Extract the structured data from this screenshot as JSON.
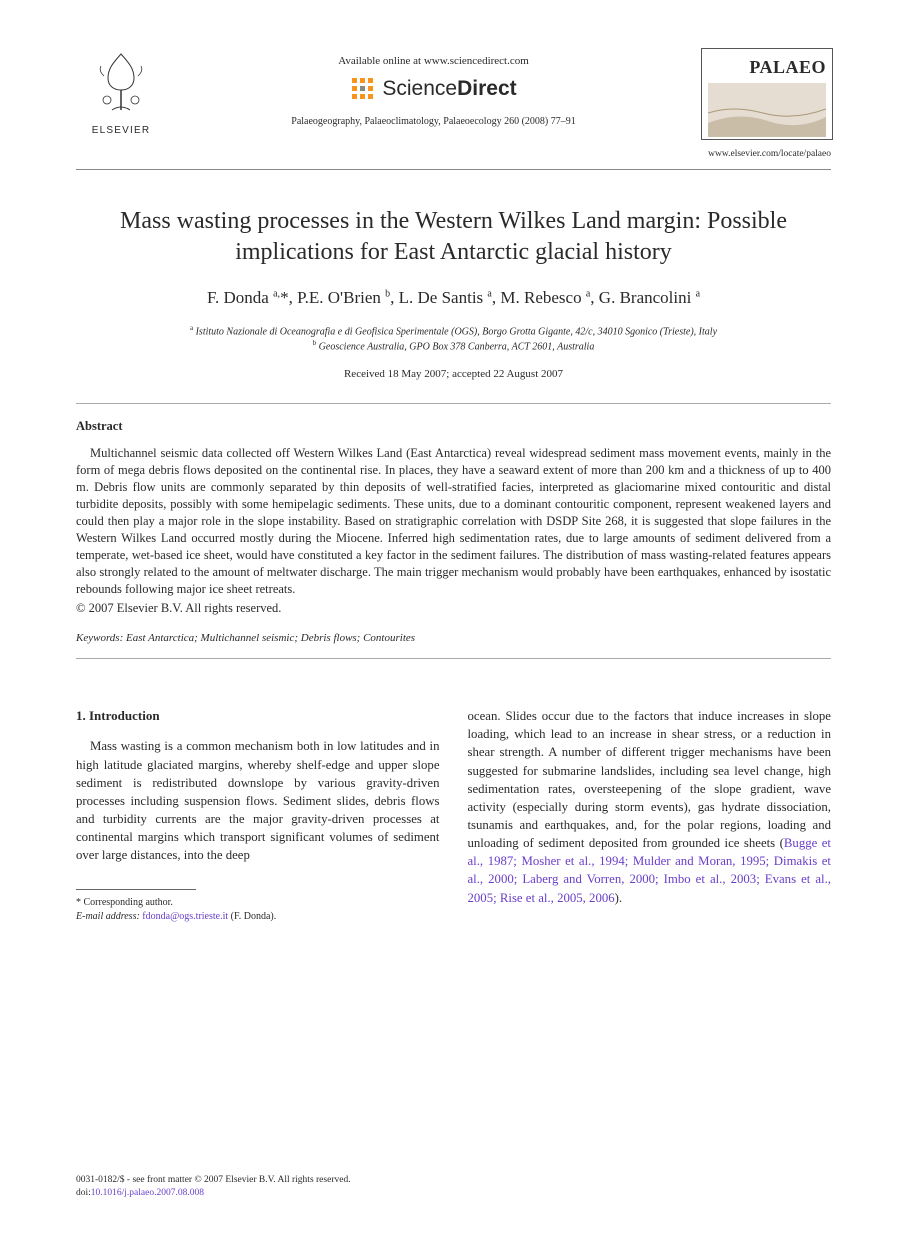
{
  "header": {
    "elsevier_label": "ELSEVIER",
    "available_online": "Available online at www.sciencedirect.com",
    "sd_brand_1": "Science",
    "sd_brand_2": "Direct",
    "journal_reference": "Palaeogeography, Palaeoclimatology, Palaeoecology 260 (2008) 77–91",
    "palaeo_box": "PALAEO",
    "journal_url": "www.elsevier.com/locate/palaeo"
  },
  "title": "Mass wasting processes in the Western Wilkes Land margin: Possible implications for East Antarctic glacial history",
  "authors_html": "F. Donda <sup>a,</sup>*, P.E. O'Brien <sup>b</sup>, L. De Santis <sup>a</sup>, M. Rebesco <sup>a</sup>, G. Brancolini <sup>a</sup>",
  "affiliations": {
    "a": "Istituto Nazionale di Oceanografia e di Geofisica Sperimentale (OGS), Borgo Grotta Gigante, 42/c, 34010 Sgonico (Trieste), Italy",
    "b": "Geoscience Australia, GPO Box 378 Canberra, ACT 2601, Australia"
  },
  "dates": "Received 18 May 2007; accepted 22 August 2007",
  "abstract": {
    "label": "Abstract",
    "body": "Multichannel seismic data collected off Western Wilkes Land (East Antarctica) reveal widespread sediment mass movement events, mainly in the form of mega debris flows deposited on the continental rise. In places, they have a seaward extent of more than 200 km and a thickness of up to 400 m. Debris flow units are commonly separated by thin deposits of well-stratified facies, interpreted as glaciomarine mixed contouritic and distal turbidite deposits, possibly with some hemipelagic sediments. These units, due to a dominant contouritic component, represent weakened layers and could then play a major role in the slope instability. Based on stratigraphic correlation with DSDP Site 268, it is suggested that slope failures in the Western Wilkes Land occurred mostly during the Miocene. Inferred high sedimentation rates, due to large amounts of sediment delivered from a temperate, wet-based ice sheet, would have constituted a key factor in the sediment failures. The distribution of mass wasting-related features appears also strongly related to the amount of meltwater discharge. The main trigger mechanism would probably have been earthquakes, enhanced by isostatic rebounds following major ice sheet retreats.",
    "copyright": "© 2007 Elsevier B.V. All rights reserved."
  },
  "keywords": {
    "label": "Keywords:",
    "list": "East Antarctica; Multichannel seismic; Debris flows; Contourites"
  },
  "section1": {
    "heading": "1. Introduction",
    "col_left": "Mass wasting is a common mechanism both in low latitudes and in high latitude glaciated margins, whereby shelf-edge and upper slope sediment is redistributed downslope by various gravity-driven processes including suspension flows. Sediment slides, debris flows and turbidity currents are the major gravity-driven processes at continental margins which transport significant volumes of sediment over large distances, into the deep",
    "col_right_plain": "ocean. Slides occur due to the factors that induce increases in slope loading, which lead to an increase in shear stress, or a reduction in shear strength. A number of different trigger mechanisms have been suggested for submarine landslides, including sea level change, high sedimentation rates, oversteepening of the slope gradient, wave activity (especially during storm events), gas hydrate dissociation, tsunamis and earthquakes, and, for the polar regions, loading and unloading of sediment deposited from grounded ice sheets (",
    "citations": "Bugge et al., 1987; Mosher et al., 1994; Mulder and Moran, 1995; Dimakis et al., 2000; Laberg and Vorren, 2000; Imbo et al., 2003; Evans et al., 2005; Rise et al., 2005, 2006",
    "col_right_tail": ")."
  },
  "footnote": {
    "corr": "* Corresponding author.",
    "email_label": "E-mail address:",
    "email": "fdonda@ogs.trieste.it",
    "email_tail": "(F. Donda)."
  },
  "footer": {
    "line1": "0031-0182/$ - see front matter © 2007 Elsevier B.V. All rights reserved.",
    "doi_label": "doi:",
    "doi": "10.1016/j.palaeo.2007.08.008"
  },
  "colors": {
    "text": "#2a2a2a",
    "link": "#6a3fc9",
    "rule": "#888888",
    "sd_orange": "#f7941e"
  }
}
